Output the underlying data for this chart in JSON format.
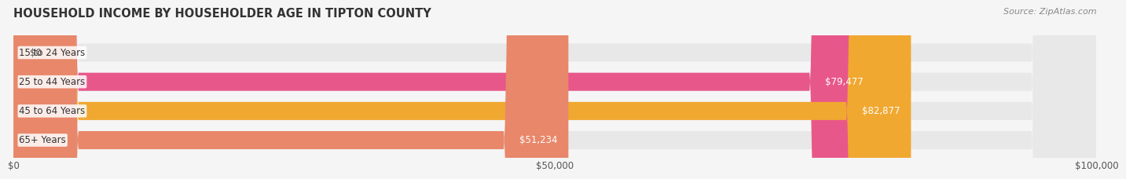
{
  "title": "HOUSEHOLD INCOME BY HOUSEHOLDER AGE IN TIPTON COUNTY",
  "source": "Source: ZipAtlas.com",
  "categories": [
    "15 to 24 Years",
    "25 to 44 Years",
    "45 to 64 Years",
    "65+ Years"
  ],
  "values": [
    0,
    79477,
    82877,
    51234
  ],
  "bar_colors": [
    "#a8b4d8",
    "#e8578a",
    "#f0a830",
    "#e8876a"
  ],
  "bar_bg_colors": [
    "#f0f0f0",
    "#f0f0f0",
    "#f0f0f0",
    "#f0f0f0"
  ],
  "label_colors": [
    "#555555",
    "#ffffff",
    "#ffffff",
    "#555555"
  ],
  "value_labels": [
    "$0",
    "$79,477",
    "$82,877",
    "$51,234"
  ],
  "xlim": [
    0,
    100000
  ],
  "xticks": [
    0,
    50000,
    100000
  ],
  "xtick_labels": [
    "$0",
    "$50,000",
    "$100,000"
  ],
  "figsize": [
    14.06,
    2.33
  ],
  "dpi": 100,
  "background_color": "#f5f5f5"
}
